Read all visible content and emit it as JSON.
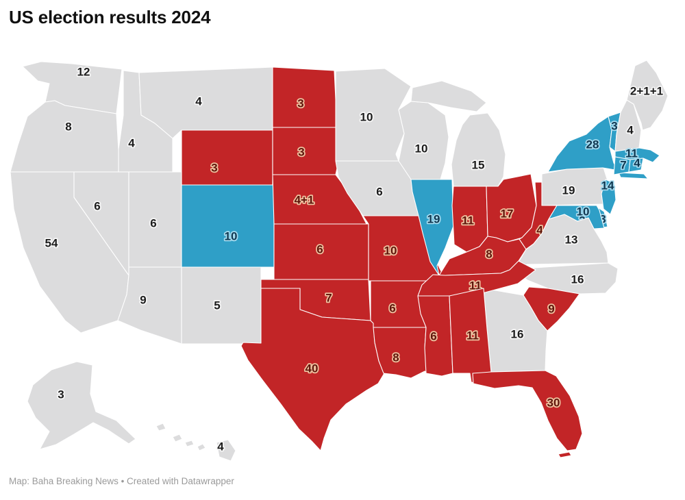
{
  "title": "US election results 2024",
  "footer": "Map: Baha Breaking News • Created with Datawrapper",
  "colors": {
    "rep": "#c22527",
    "dem": "#2f9fc7",
    "undecided": "#dcdcdd",
    "background": "#ffffff",
    "state_border": "#ffffff"
  },
  "label_colors": {
    "rep": {
      "text": "#5f150b",
      "halo": "#eec2a0"
    },
    "dem": {
      "text": "#103750",
      "halo": "#a5dbef"
    },
    "undecided": {
      "text": "#1c1c1c",
      "halo": "#f7f7f7"
    }
  },
  "map": {
    "states": [
      {
        "id": "WA",
        "name": "Washington",
        "votes": "12",
        "party": "undecided"
      },
      {
        "id": "OR",
        "name": "Oregon",
        "votes": "8",
        "party": "undecided"
      },
      {
        "id": "CA",
        "name": "California",
        "votes": "54",
        "party": "undecided"
      },
      {
        "id": "NV",
        "name": "Nevada",
        "votes": "6",
        "party": "undecided"
      },
      {
        "id": "ID",
        "name": "Idaho",
        "votes": "4",
        "party": "undecided"
      },
      {
        "id": "MT",
        "name": "Montana",
        "votes": "4",
        "party": "undecided"
      },
      {
        "id": "WY",
        "name": "Wyoming",
        "votes": "3",
        "party": "rep"
      },
      {
        "id": "UT",
        "name": "Utah",
        "votes": "6",
        "party": "undecided"
      },
      {
        "id": "CO",
        "name": "Colorado",
        "votes": "10",
        "party": "dem"
      },
      {
        "id": "AZ",
        "name": "Arizona",
        "votes": "9",
        "party": "undecided"
      },
      {
        "id": "NM",
        "name": "New Mexico",
        "votes": "5",
        "party": "undecided"
      },
      {
        "id": "ND",
        "name": "North Dakota",
        "votes": "3",
        "party": "rep"
      },
      {
        "id": "SD",
        "name": "South Dakota",
        "votes": "3",
        "party": "rep"
      },
      {
        "id": "NE",
        "name": "Nebraska",
        "votes": "4+1",
        "party": "rep"
      },
      {
        "id": "KS",
        "name": "Kansas",
        "votes": "6",
        "party": "rep"
      },
      {
        "id": "OK",
        "name": "Oklahoma",
        "votes": "7",
        "party": "rep"
      },
      {
        "id": "TX",
        "name": "Texas",
        "votes": "40",
        "party": "rep"
      },
      {
        "id": "MN",
        "name": "Minnesota",
        "votes": "10",
        "party": "undecided"
      },
      {
        "id": "IA",
        "name": "Iowa",
        "votes": "6",
        "party": "undecided"
      },
      {
        "id": "MO",
        "name": "Missouri",
        "votes": "10",
        "party": "rep"
      },
      {
        "id": "AR",
        "name": "Arkansas",
        "votes": "6",
        "party": "rep"
      },
      {
        "id": "LA",
        "name": "Louisiana",
        "votes": "8",
        "party": "rep"
      },
      {
        "id": "WI",
        "name": "Wisconsin",
        "votes": "10",
        "party": "undecided"
      },
      {
        "id": "IL",
        "name": "Illinois",
        "votes": "19",
        "party": "dem"
      },
      {
        "id": "MI",
        "name": "Michigan",
        "votes": "15",
        "party": "undecided"
      },
      {
        "id": "IN",
        "name": "Indiana",
        "votes": "11",
        "party": "rep"
      },
      {
        "id": "OH",
        "name": "Ohio",
        "votes": "17",
        "party": "rep"
      },
      {
        "id": "KY",
        "name": "Kentucky",
        "votes": "8",
        "party": "rep"
      },
      {
        "id": "WV",
        "name": "West Virginia",
        "votes": "4",
        "party": "rep"
      },
      {
        "id": "PA",
        "name": "Pennsylvania",
        "votes": "19",
        "party": "undecided"
      },
      {
        "id": "NY",
        "name": "New York",
        "votes": "28",
        "party": "dem"
      },
      {
        "id": "VT",
        "name": "Vermont",
        "votes": "3",
        "party": "dem"
      },
      {
        "id": "NH",
        "name": "New Hampshire",
        "votes": "4",
        "party": "undecided"
      },
      {
        "id": "ME",
        "name": "Maine",
        "votes": "2+1+1",
        "party": "undecided"
      },
      {
        "id": "MA",
        "name": "Massachusetts",
        "votes": "11",
        "party": "dem"
      },
      {
        "id": "CT",
        "name": "Connecticut",
        "votes": "7",
        "party": "dem"
      },
      {
        "id": "RI",
        "name": "Rhode Island",
        "votes": "4",
        "party": "dem"
      },
      {
        "id": "NJ",
        "name": "New Jersey",
        "votes": "14",
        "party": "dem"
      },
      {
        "id": "DE",
        "name": "Delaware",
        "votes": "3",
        "party": "dem"
      },
      {
        "id": "MD",
        "name": "Maryland",
        "votes": "10",
        "party": "dem"
      },
      {
        "id": "DC",
        "name": "District of Columbia",
        "votes": "3",
        "party": "dem"
      },
      {
        "id": "VA",
        "name": "Virginia",
        "votes": "13",
        "party": "undecided"
      },
      {
        "id": "NC",
        "name": "North Carolina",
        "votes": "16",
        "party": "undecided"
      },
      {
        "id": "SC",
        "name": "South Carolina",
        "votes": "9",
        "party": "rep"
      },
      {
        "id": "GA",
        "name": "Georgia",
        "votes": "16",
        "party": "undecided"
      },
      {
        "id": "TN",
        "name": "Tennessee",
        "votes": "11",
        "party": "rep"
      },
      {
        "id": "MS",
        "name": "Mississippi",
        "votes": "6",
        "party": "rep"
      },
      {
        "id": "AL",
        "name": "Alabama",
        "votes": "11",
        "party": "rep"
      },
      {
        "id": "FL",
        "name": "Florida",
        "votes": "30",
        "party": "rep"
      },
      {
        "id": "AK",
        "name": "Alaska",
        "votes": "3",
        "party": "undecided"
      },
      {
        "id": "HI",
        "name": "Hawaii",
        "votes": "4",
        "party": "undecided"
      }
    ]
  }
}
